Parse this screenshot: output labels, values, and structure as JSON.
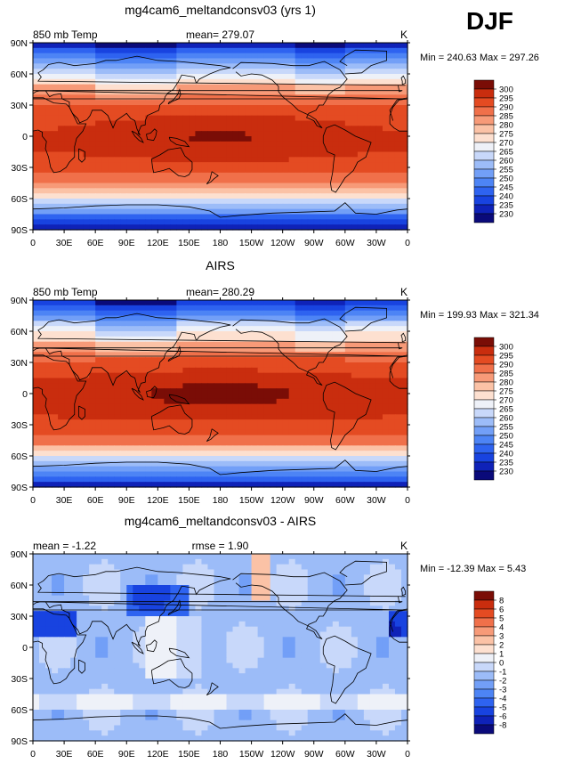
{
  "page": {
    "season": "DJF"
  },
  "panels": [
    {
      "title": "mg4cam6_meltandconsv03 (yrs 1)",
      "left_label": "850 mb Temp",
      "center_label": "mean= 279.07",
      "right_label": "K",
      "minmax": "Min = 240.63 Max = 297.26",
      "colorbar_labels": [
        "300",
        "295",
        "290",
        "285",
        "280",
        "275",
        "270",
        "265",
        "260",
        "255",
        "250",
        "245",
        "240",
        "235",
        "230"
      ]
    },
    {
      "title": "AIRS",
      "left_label": "850 mb Temp",
      "center_label": "mean= 280.29",
      "right_label": "K",
      "minmax": "Min = 199.93 Max = 321.34",
      "colorbar_labels": [
        "300",
        "295",
        "290",
        "285",
        "280",
        "275",
        "270",
        "265",
        "260",
        "255",
        "250",
        "245",
        "240",
        "235",
        "230"
      ]
    },
    {
      "title": "mg4cam6_meltandconsv03 - AIRS",
      "left_label": "mean =  -1.22",
      "center_label": "rmse =   1.90",
      "right_label": "K",
      "minmax": "Min = -12.39 Max =   5.43",
      "colorbar_labels": [
        "8",
        "6",
        "5",
        "4",
        "3",
        "2",
        "1",
        "0",
        "-1",
        "-2",
        "-3",
        "-4",
        "-5",
        "-6",
        "-8"
      ]
    }
  ],
  "chart_data": [
    {
      "type": "heatmap",
      "title": "mg4cam6_meltandconsv03 (yrs 1)",
      "variable": "850 mb Temp",
      "units": "K",
      "mean": 279.07,
      "min": 240.63,
      "max": 297.26,
      "x_ticks": [
        "0",
        "30E",
        "60E",
        "90E",
        "120E",
        "150E",
        "180",
        "150W",
        "120W",
        "90W",
        "60W",
        "30W",
        "0"
      ],
      "y_ticks": [
        "90N",
        "60N",
        "30N",
        "0",
        "30S",
        "60S",
        "90S"
      ],
      "xlim": [
        0,
        360
      ],
      "ylim": [
        -90,
        90
      ],
      "levels": [
        230,
        235,
        240,
        245,
        250,
        255,
        260,
        265,
        270,
        275,
        280,
        285,
        290,
        295,
        300
      ],
      "colors": [
        "#0a0a7a",
        "#0f22b8",
        "#1843e0",
        "#2e63f0",
        "#4d84f5",
        "#729ff7",
        "#9cbcf8",
        "#c8d8fa",
        "#eef1f8",
        "#fde0d0",
        "#fbc2a6",
        "#f79a78",
        "#f0704a",
        "#e44b22",
        "#c92d0e",
        "#7a0d06"
      ]
    },
    {
      "type": "heatmap",
      "title": "AIRS",
      "variable": "850 mb Temp",
      "units": "K",
      "mean": 280.29,
      "min": 199.93,
      "max": 321.34,
      "x_ticks": [
        "0",
        "30E",
        "60E",
        "90E",
        "120E",
        "150E",
        "180",
        "150W",
        "120W",
        "90W",
        "60W",
        "30W",
        "0"
      ],
      "y_ticks": [
        "90N",
        "60N",
        "30N",
        "0",
        "30S",
        "60S",
        "90S"
      ],
      "xlim": [
        0,
        360
      ],
      "ylim": [
        -90,
        90
      ],
      "levels": [
        230,
        235,
        240,
        245,
        250,
        255,
        260,
        265,
        270,
        275,
        280,
        285,
        290,
        295,
        300
      ],
      "colors": [
        "#0a0a7a",
        "#0f22b8",
        "#1843e0",
        "#2e63f0",
        "#4d84f5",
        "#729ff7",
        "#9cbcf8",
        "#c8d8fa",
        "#eef1f8",
        "#fde0d0",
        "#fbc2a6",
        "#f79a78",
        "#f0704a",
        "#e44b22",
        "#c92d0e",
        "#7a0d06"
      ]
    },
    {
      "type": "heatmap",
      "title": "mg4cam6_meltandconsv03 - AIRS",
      "variable": "difference",
      "units": "K",
      "mean": -1.22,
      "rmse": 1.9,
      "min": -12.39,
      "max": 5.43,
      "x_ticks": [
        "0",
        "30E",
        "60E",
        "90E",
        "120E",
        "150E",
        "180",
        "150W",
        "120W",
        "90W",
        "60W",
        "30W",
        "0"
      ],
      "y_ticks": [
        "90N",
        "60N",
        "30N",
        "0",
        "30S",
        "60S",
        "90S"
      ],
      "xlim": [
        0,
        360
      ],
      "ylim": [
        -90,
        90
      ],
      "levels": [
        -8,
        -6,
        -5,
        -4,
        -3,
        -2,
        -1,
        0,
        1,
        2,
        3,
        4,
        5,
        6,
        8
      ],
      "colors": [
        "#0a0a7a",
        "#0f22b8",
        "#1843e0",
        "#2e63f0",
        "#4d84f5",
        "#729ff7",
        "#9cbcf8",
        "#c8d8fa",
        "#eef1f8",
        "#fde0d0",
        "#fbc2a6",
        "#f79a78",
        "#f0704a",
        "#e44b22",
        "#c92d0e",
        "#7a0d06"
      ]
    }
  ]
}
